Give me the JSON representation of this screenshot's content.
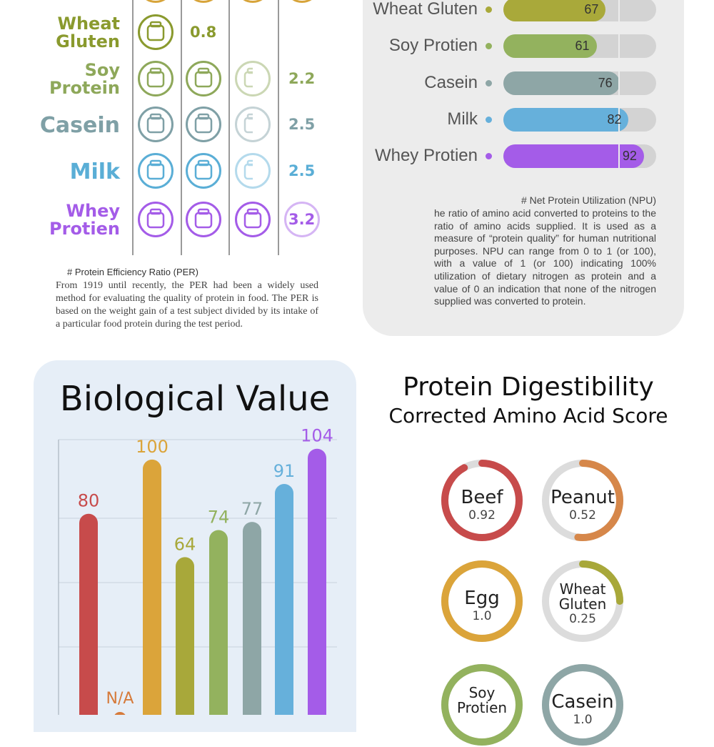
{
  "per": {
    "rows": [
      {
        "label": "Wheat\nGluten",
        "value": "0.8",
        "color": "#8a9a2e",
        "icon": "wheat-icon",
        "icons": 1
      },
      {
        "label": "Soy\nProtein",
        "value": "2.2",
        "color": "#8ea85a",
        "icon": "soybean-icon",
        "icons": 2.5
      },
      {
        "label": "Casein",
        "value": "2.5",
        "color": "#7fa0a6",
        "icon": "yogurt-cheese-icon",
        "icons": 2.5
      },
      {
        "label": "Milk",
        "value": "2.5",
        "color": "#5aaed6",
        "icon": "milk-bottle-icon",
        "icons": 2.5
      },
      {
        "label": "Whey\nProtien",
        "value": "3.2",
        "color": "#a45ce8",
        "icon": "protein-tub-icon",
        "icons": 3.2
      }
    ],
    "note_title": "# Protein Efficiency Ratio (PER)",
    "note_body": "From 1919 until recently, the PER had been a widely used method for evaluating the quality of protein in food. The PER is based on the weight gain of a test subject divided by its intake of a particular food protein during the test period.",
    "top_icon_color": "#d7a43a"
  },
  "npu": {
    "type": "bar",
    "max": 100,
    "rows": [
      {
        "label": "Wheat Gluten",
        "value": 67,
        "color": "#a9a93a"
      },
      {
        "label": "Soy Protien",
        "value": 61,
        "color": "#93b25e"
      },
      {
        "label": "Casein",
        "value": 76,
        "color": "#8ea6a6"
      },
      {
        "label": "Milk",
        "value": 82,
        "color": "#66b0db"
      },
      {
        "label": "Whey Protien",
        "value": 92,
        "color": "#a45ce8"
      }
    ],
    "note_title": "# Net Protein Utilization (NPU)",
    "note_body": "he ratio of amino acid converted to proteins to the ratio of amino acids supplied. It is used as a measure of “protein quality” for human nutritional purposes. NPU can range from 0 to 1 (or 100), with a value of 1 (or 100) indicating 100% utilization of dietary nitrogen as protein and a value of 0 an indication that none of the nitrogen supplied was converted to protein."
  },
  "chart_data": {
    "type": "bar",
    "title": "Biological Value",
    "ylim": [
      0,
      110
    ],
    "bars": [
      {
        "label": "80",
        "value": 80,
        "color": "#c74b4b"
      },
      {
        "label": "N/A",
        "value": null,
        "color": "#d67a3a"
      },
      {
        "label": "100",
        "value": 100,
        "color": "#dba43a"
      },
      {
        "label": "64",
        "value": 64,
        "color": "#a8a83a"
      },
      {
        "label": "74",
        "value": 74,
        "color": "#93b25e"
      },
      {
        "label": "77",
        "value": 77,
        "color": "#8ea6a6"
      },
      {
        "label": "91",
        "value": 91,
        "color": "#66b0db"
      },
      {
        "label": "104",
        "value": 104,
        "color": "#a45ce8"
      }
    ]
  },
  "pdcaas": {
    "title": "Protein Digestibility",
    "subtitle": "Corrected Amino Acid Score",
    "items": [
      {
        "name": "Beef",
        "value": "0.92",
        "score": 0.92,
        "color": "#c74b4b"
      },
      {
        "name": "Peanut",
        "value": "0.52",
        "score": 0.52,
        "color": "#d6874a"
      },
      {
        "name": "Egg",
        "value": "1.0",
        "score": 1.0,
        "color": "#dba43a"
      },
      {
        "name": "Wheat\nGluten",
        "value": "0.25",
        "score": 0.25,
        "color": "#a8a83a"
      },
      {
        "name": "Soy\nProtien",
        "value": "",
        "score": 1.0,
        "color": "#93b25e"
      },
      {
        "name": "Casein",
        "value": "1.0",
        "score": 1.0,
        "color": "#8ea6a6"
      }
    ]
  }
}
